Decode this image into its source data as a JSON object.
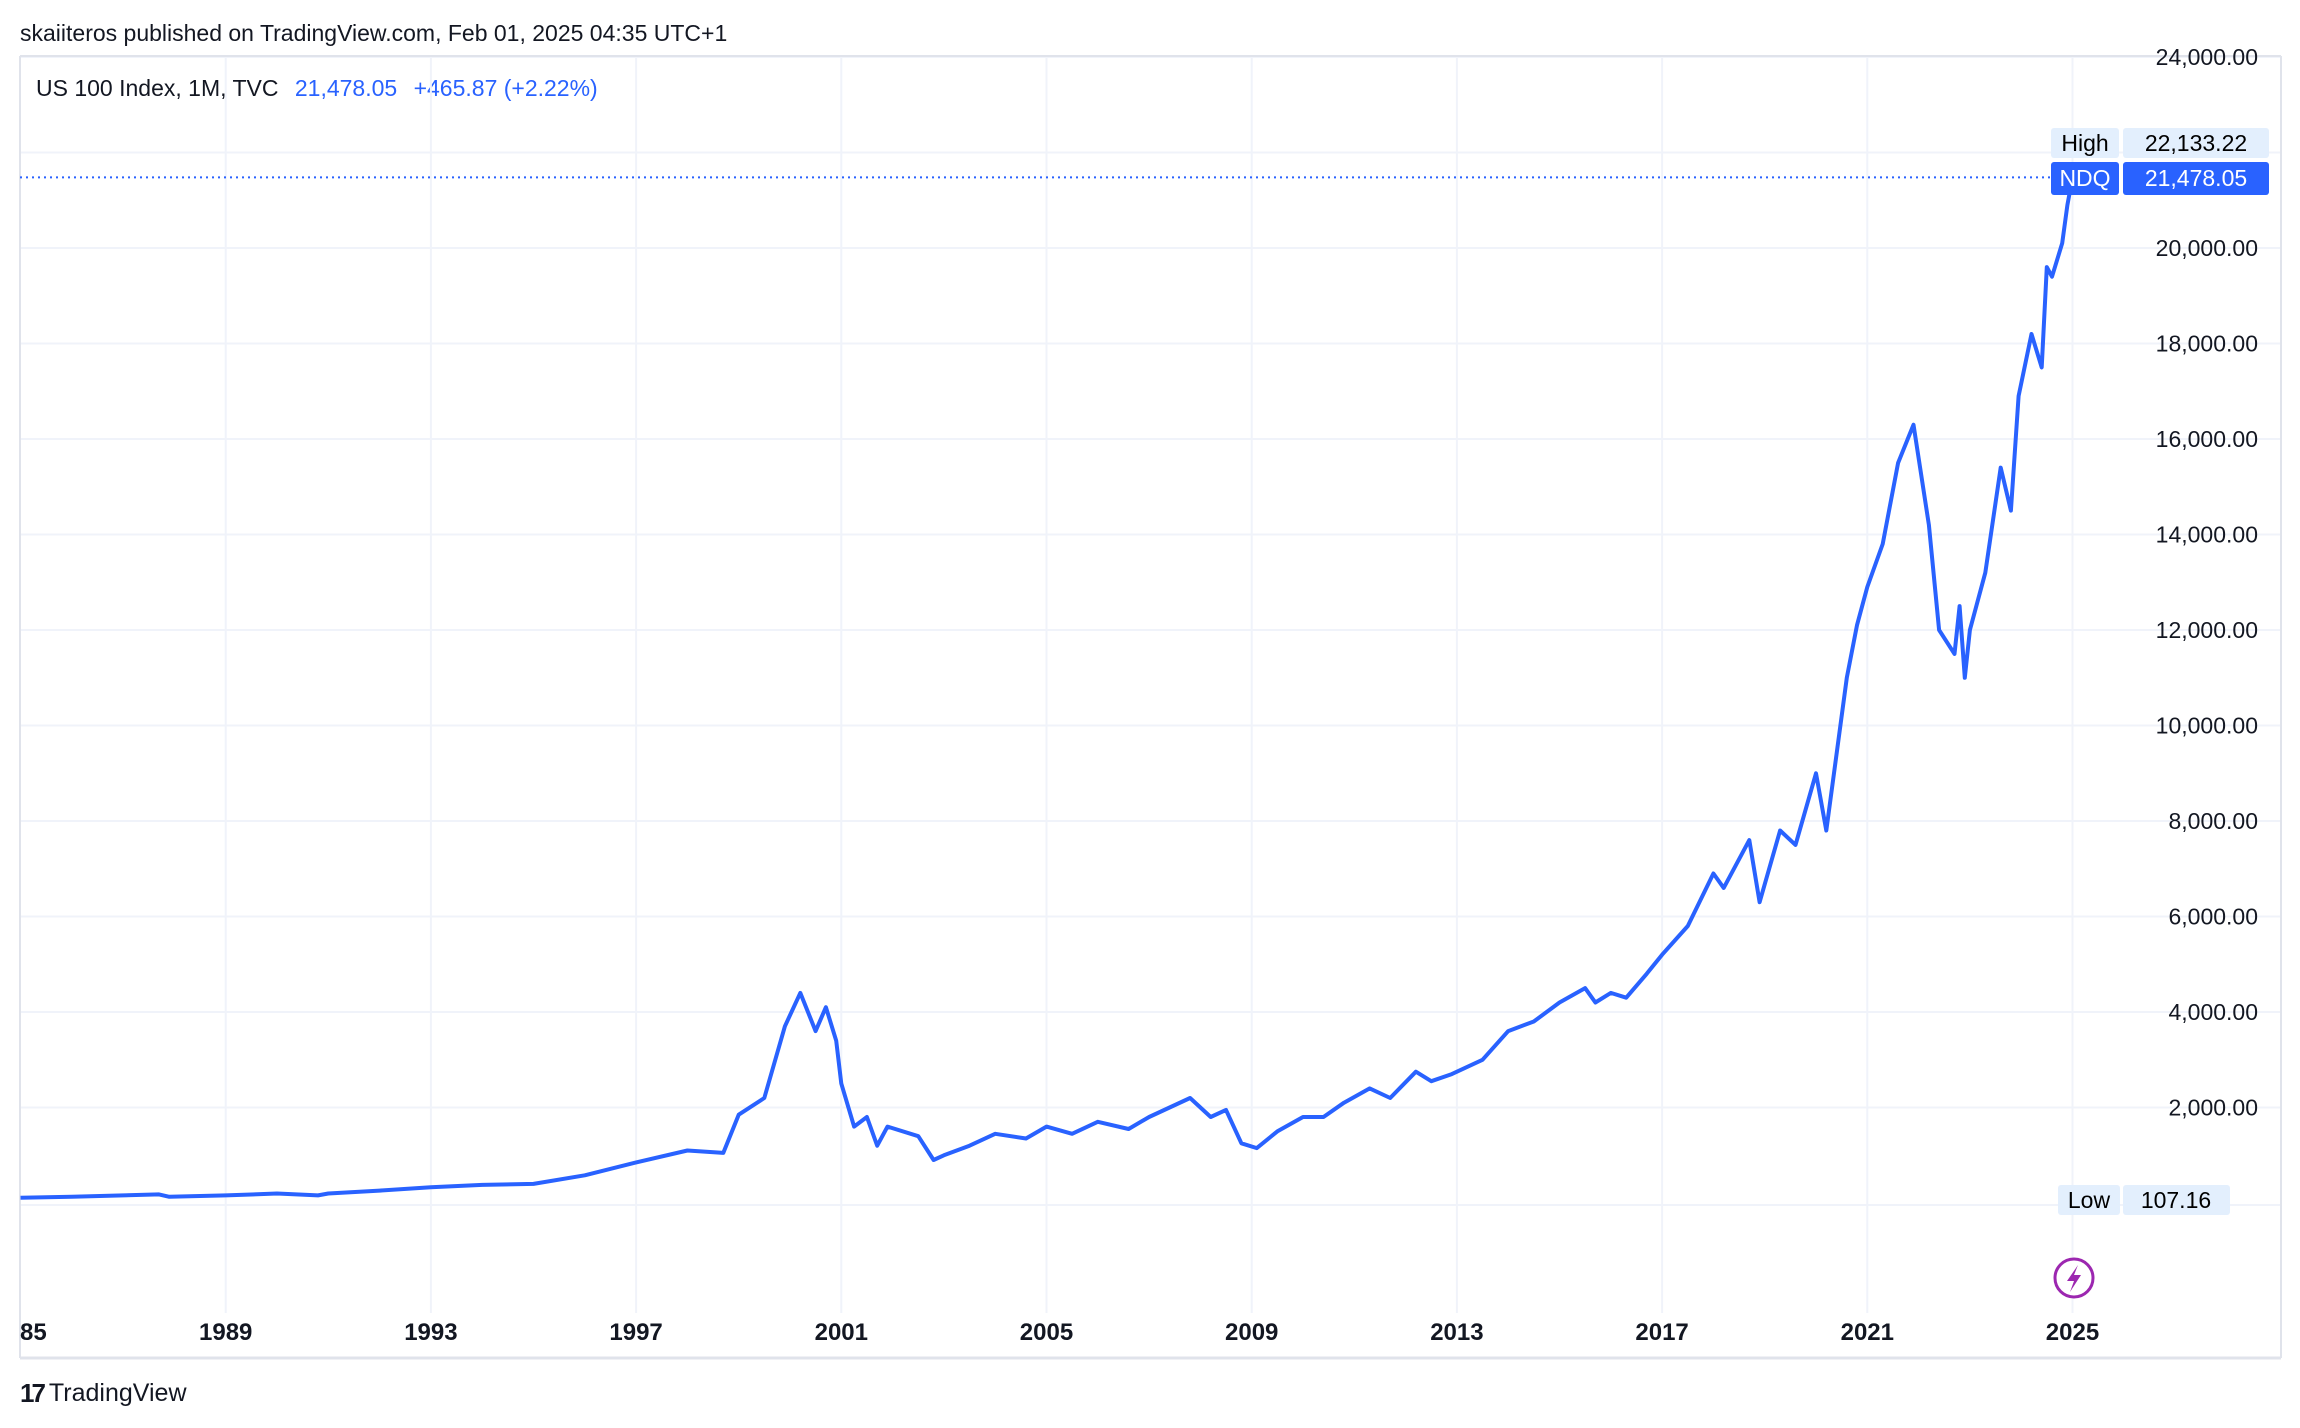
{
  "header": {
    "published": "skaiiteros published on TradingView.com, Feb 01, 2025 04:35 UTC+1"
  },
  "legend": {
    "symbol": "US 100 Index, 1M, TVC",
    "price": "21,478.05",
    "change": "+465.87 (+2.22%)"
  },
  "badges": {
    "high_label": "High",
    "high_value": "22,133.22",
    "symbol_label": "NDQ",
    "symbol_value": "21,478.05",
    "low_label": "Low",
    "low_value": "107.16"
  },
  "footer": {
    "logo_text": "TradingView"
  },
  "colors": {
    "line": "#2962ff",
    "grid": "#f0f3fa",
    "badge_light": "#e3effd",
    "lightning": "#9c27b0"
  },
  "icons": [
    "lightning-icon",
    "tradingview-logo-icon"
  ],
  "chart_data": {
    "type": "line",
    "title": "",
    "series": [
      {
        "x": [
          1985.0,
          1986,
          1987,
          1987.7,
          1987.9,
          1989,
          1990,
          1990.8,
          1991,
          1992,
          1993,
          1994,
          1995,
          1996,
          1997,
          1998,
          1998.7,
          1999,
          1999.5,
          1999.9,
          2000.2,
          2000.5,
          2000.7,
          2000.9,
          2001.0,
          2001.25,
          2001.5,
          2001.7,
          2001.9,
          2002.5,
          2002.8,
          2003,
          2003.5,
          2004,
          2004.6,
          2005,
          2005.5,
          2006,
          2006.6,
          2007,
          2007.8,
          2008.2,
          2008.5,
          2008.8,
          2009.1,
          2009.5,
          2010,
          2010.4,
          2010.8,
          2011.3,
          2011.7,
          2012.2,
          2012.5,
          2012.9,
          2013.5,
          2014,
          2014.5,
          2015,
          2015.5,
          2015.7,
          2016,
          2016.3,
          2016.7,
          2017,
          2017.5,
          2018,
          2018.2,
          2018.7,
          2018.9,
          2019.3,
          2019.6,
          2020,
          2020.2,
          2020.6,
          2020.8,
          2021,
          2021.3,
          2021.6,
          2021.9,
          2022.2,
          2022.4,
          2022.7,
          2022.8,
          2022.9,
          2023,
          2023.3,
          2023.6,
          2023.8,
          2023.95,
          2024.2,
          2024.4,
          2024.5,
          2024.6,
          2024.8,
          2024.9,
          2025.0
        ],
        "values": [
          110,
          130,
          160,
          180,
          130,
          160,
          200,
          160,
          200,
          260,
          330,
          380,
          400,
          580,
          850,
          1100,
          1050,
          1850,
          2200,
          3700,
          4400,
          3600,
          4100,
          3400,
          2500,
          1600,
          1800,
          1200,
          1600,
          1400,
          900,
          1000,
          1200,
          1450,
          1350,
          1600,
          1450,
          1700,
          1550,
          1800,
          2200,
          1800,
          1950,
          1250,
          1150,
          1500,
          1800,
          1800,
          2100,
          2400,
          2200,
          2750,
          2550,
          2700,
          3000,
          3600,
          3800,
          4200,
          4500,
          4200,
          4400,
          4300,
          4800,
          5200,
          5800,
          6900,
          6600,
          7600,
          6300,
          7800,
          7500,
          9000,
          7800,
          11000,
          12100,
          12900,
          13800,
          15500,
          16300,
          14200,
          12000,
          11500,
          12500,
          11000,
          12000,
          13200,
          15400,
          14500,
          16900,
          18200,
          17500,
          19600,
          19400,
          20100,
          20900,
          21478.05
        ]
      }
    ],
    "xlim": [
      1985,
      2029.5
    ],
    "ylim": [
      0,
      24000
    ],
    "x_ticks": [
      "85",
      "1989",
      "1993",
      "1997",
      "2001",
      "2005",
      "2009",
      "2013",
      "2017",
      "2021",
      "2025"
    ],
    "x_tick_values": [
      1985,
      1989,
      1993,
      1997,
      2001,
      2005,
      2009,
      2013,
      2017,
      2021,
      2025
    ],
    "y_ticks": [
      "2,000.00",
      "4,000.00",
      "6,000.00",
      "8,000.00",
      "10,000.00",
      "12,000.00",
      "14,000.00",
      "16,000.00",
      "18,000.00",
      "20,000.00",
      "24,000.00"
    ],
    "y_tick_values": [
      2000,
      4000,
      6000,
      8000,
      10000,
      12000,
      14000,
      16000,
      18000,
      20000,
      24000
    ],
    "grid": true,
    "last_value": 21478.05
  }
}
